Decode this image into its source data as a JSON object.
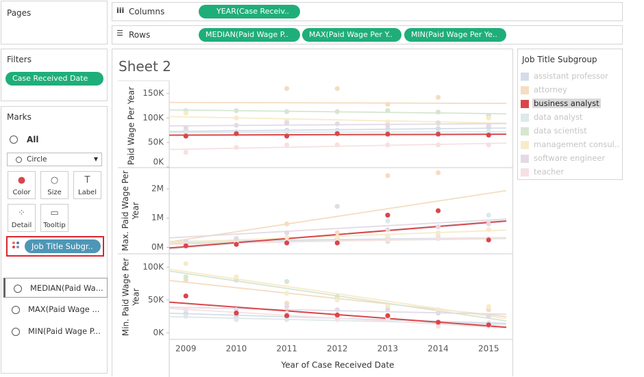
{
  "pages_title": "Pages",
  "filters": {
    "title": "Filters",
    "pill": "Case Received Date"
  },
  "marks": {
    "title": "Marks",
    "all": "All",
    "mark_type": "Circle",
    "buttons": [
      "Color",
      "Size",
      "Label",
      "Detail",
      "Tooltip"
    ],
    "color_pill": "Job Title Subgr..",
    "measures": [
      "MEDIAN(Paid Wa...",
      "MAX(Paid Wage ...",
      "MIN(Paid Wage P..."
    ]
  },
  "shelves": {
    "columns_label": "Columns",
    "columns": [
      "YEAR(Case Receiv.."
    ],
    "rows_label": "Rows",
    "rows": [
      "MEDIAN(Paid Wage P..",
      "MAX(Paid Wage Per Y..",
      "MIN(Paid Wage Per Ye.."
    ]
  },
  "sheet_title": "Sheet 2",
  "legend": {
    "title": "Job Title Subgroup",
    "items": [
      "assistant professor",
      "attorney",
      "business analyst",
      "data analyst",
      "data scientist",
      "management consul..",
      "software engineer",
      "teacher"
    ],
    "colors": [
      "#d3dde9",
      "#f5dcc2",
      "#d9464a",
      "#dde9ea",
      "#d6e6d1",
      "#f7ebca",
      "#e3dae6",
      "#f7e0e2"
    ],
    "selected_index": 2
  },
  "chart_data": [
    {
      "type": "scatter",
      "y_label": "Paid Wage Per Year",
      "x": [
        2009,
        2010,
        2011,
        2012,
        2013,
        2014,
        2015
      ],
      "xlim": [
        2008.67,
        2015.35
      ],
      "ylim": [
        0,
        169000
      ],
      "yticks": [
        {
          "value": 0,
          "label": "0K"
        },
        {
          "value": 50000,
          "label": "50K"
        },
        {
          "value": 100000,
          "label": "100K"
        },
        {
          "value": 150000,
          "label": "150K"
        }
      ],
      "series": [
        {
          "color": "#d3dde9",
          "values": [
            75000,
            72000,
            75000,
            75000,
            77000,
            78000,
            80000
          ]
        },
        {
          "color": "#f5dcc2",
          "values": [
            110000,
            115000,
            160000,
            160000,
            128000,
            142000,
            100000
          ]
        },
        {
          "color": "#d9464a",
          "values": [
            63000,
            68000,
            63000,
            68000,
            67000,
            67000,
            65000
          ]
        },
        {
          "color": "#dde9ea",
          "values": [
            70000,
            70000,
            72000,
            72000,
            72000,
            70000,
            72000
          ]
        },
        {
          "color": "#d6e6d1",
          "values": [
            115000,
            115000,
            113000,
            113000,
            115000,
            112000,
            105000
          ]
        },
        {
          "color": "#f7ebca",
          "values": [
            110000,
            100000,
            95000,
            88000,
            92000,
            88000,
            100000
          ]
        },
        {
          "color": "#e3dae6",
          "values": [
            80000,
            85000,
            90000,
            88000,
            85000,
            90000,
            85000
          ]
        },
        {
          "color": "#f7e0e2",
          "values": [
            30000,
            40000,
            45000,
            45000,
            45000,
            45000,
            45000
          ]
        }
      ]
    },
    {
      "type": "scatter",
      "y_label": "Max. Paid Wage Per Year",
      "x": [
        2009,
        2010,
        2011,
        2012,
        2013,
        2014,
        2015
      ],
      "xlim": [
        2008.67,
        2015.35
      ],
      "ylim": [
        -200000,
        2700000
      ],
      "yticks": [
        {
          "value": 0,
          "label": "0M"
        },
        {
          "value": 1000000,
          "label": "1M"
        },
        {
          "value": 2000000,
          "label": "2M"
        }
      ],
      "series": [
        {
          "color": "#d3dde9",
          "values": [
            150000,
            300000,
            200000,
            300000,
            300000,
            300000,
            300000
          ]
        },
        {
          "color": "#f5dcc2",
          "values": [
            200000,
            300000,
            800000,
            500000,
            2450000,
            2550000,
            600000
          ]
        },
        {
          "color": "#d9464a",
          "values": [
            50000,
            100000,
            150000,
            150000,
            1100000,
            1250000,
            250000
          ]
        },
        {
          "color": "#dde9ea",
          "values": [
            100000,
            150000,
            200000,
            200000,
            900000,
            400000,
            1100000
          ]
        },
        {
          "color": "#d6e6d1",
          "values": [
            150000,
            200000,
            200000,
            200000,
            200000,
            300000,
            300000
          ]
        },
        {
          "color": "#f7ebca",
          "values": [
            200000,
            250000,
            350000,
            350000,
            400000,
            500000,
            600000
          ]
        },
        {
          "color": "#e3dae6",
          "values": [
            200000,
            300000,
            500000,
            1400000,
            600000,
            700000,
            800000
          ]
        },
        {
          "color": "#f7e0e2",
          "values": [
            100000,
            150000,
            200000,
            200000,
            250000,
            300000,
            300000
          ]
        }
      ]
    },
    {
      "type": "scatter",
      "y_label": "Min. Paid Wage Per Year",
      "x_label": "Year of Case Received Date",
      "x": [
        2009,
        2010,
        2011,
        2012,
        2013,
        2014,
        2015
      ],
      "xlim": [
        2008.67,
        2015.35
      ],
      "ylim": [
        -9000,
        119000
      ],
      "yticks": [
        {
          "value": 0,
          "label": "0K"
        },
        {
          "value": 50000,
          "label": "50K"
        },
        {
          "value": 100000,
          "label": "100K"
        }
      ],
      "series": [
        {
          "color": "#d3dde9",
          "values": [
            30000,
            25000,
            22000,
            25000,
            22000,
            15000,
            15000
          ]
        },
        {
          "color": "#f5dcc2",
          "values": [
            80000,
            80000,
            45000,
            50000,
            40000,
            35000,
            35000
          ]
        },
        {
          "color": "#d9464a",
          "values": [
            56000,
            30000,
            26000,
            27000,
            26000,
            16000,
            12000
          ]
        },
        {
          "color": "#dde9ea",
          "values": [
            25000,
            20000,
            20000,
            20000,
            20000,
            10000,
            15000
          ]
        },
        {
          "color": "#d6e6d1",
          "values": [
            85000,
            80000,
            78000,
            55000,
            40000,
            30000,
            25000
          ]
        },
        {
          "color": "#f7ebca",
          "values": [
            105000,
            85000,
            60000,
            50000,
            40000,
            35000,
            40000
          ]
        },
        {
          "color": "#e3dae6",
          "values": [
            35000,
            35000,
            40000,
            35000,
            35000,
            30000,
            25000
          ]
        },
        {
          "color": "#f7e0e2",
          "values": [
            35000,
            30000,
            30000,
            20000,
            20000,
            10000,
            10000
          ]
        }
      ]
    }
  ]
}
